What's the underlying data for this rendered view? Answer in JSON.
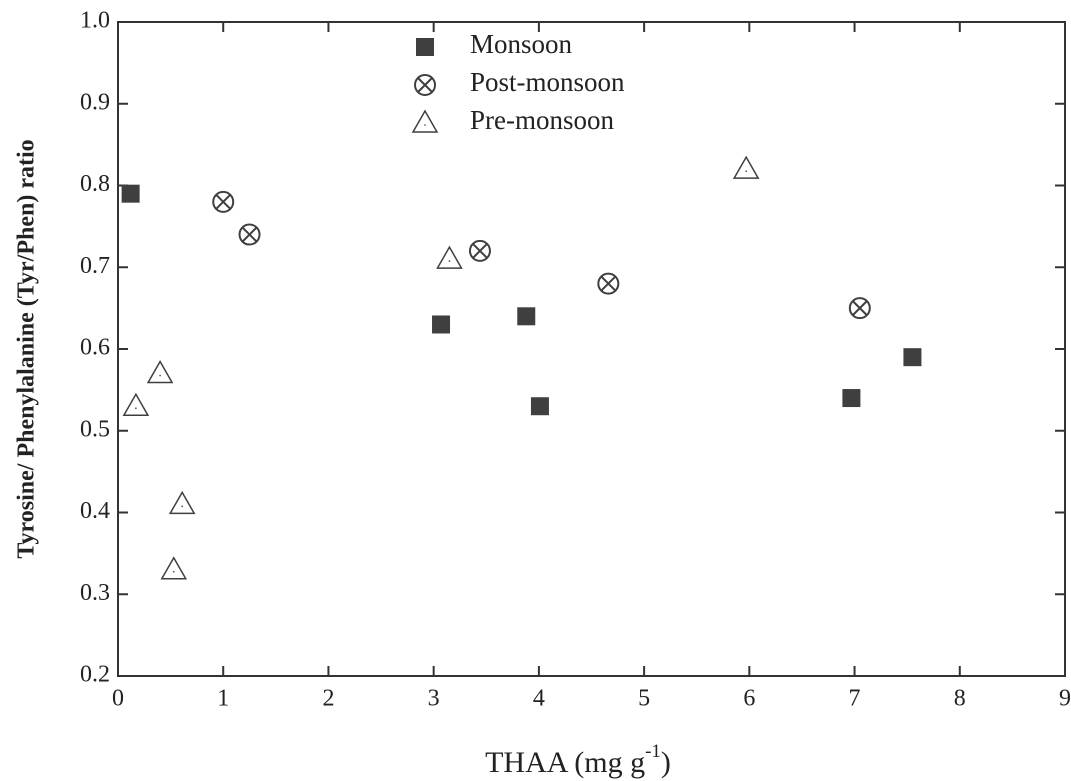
{
  "chart_data": {
    "type": "scatter",
    "x_label": {
      "text": "THAA (mg g",
      "superscript": "-1",
      "suffix": ")"
    },
    "y_label": "Tyrosine/ Phenylalanine (Tyr/Phen) ratio",
    "xlim": [
      0,
      9
    ],
    "ylim": [
      0.2,
      1.0
    ],
    "xticks": [
      0,
      1,
      2,
      3,
      4,
      5,
      6,
      7,
      8,
      9
    ],
    "yticks": [
      0.2,
      0.3,
      0.4,
      0.5,
      0.6,
      0.7,
      0.8,
      0.9,
      {
        "value": 1,
        "label": "1.0"
      }
    ],
    "legend": "top",
    "series": [
      {
        "name": "Monsoon",
        "marker": "square",
        "color": "#3f3f3f",
        "x": [
          0.12,
          3.07,
          3.88,
          4.01,
          6.97,
          7.55
        ],
        "values": [
          0.79,
          0.63,
          0.64,
          0.53,
          0.54,
          0.59
        ]
      },
      {
        "name": "Post-monsoon",
        "marker": "circle-x",
        "color": "#3f3f3f",
        "x": [
          1.0,
          1.25,
          3.44,
          4.66,
          7.05
        ],
        "values": [
          0.78,
          0.74,
          0.72,
          0.68,
          0.65
        ]
      },
      {
        "name": "Pre-monsoon",
        "marker": "triangle",
        "color": "#3f3f3f",
        "x": [
          0.17,
          0.4,
          0.61,
          0.53,
          3.15,
          5.97
        ],
        "values": [
          0.53,
          0.57,
          0.41,
          0.33,
          0.71,
          0.82
        ]
      }
    ]
  }
}
